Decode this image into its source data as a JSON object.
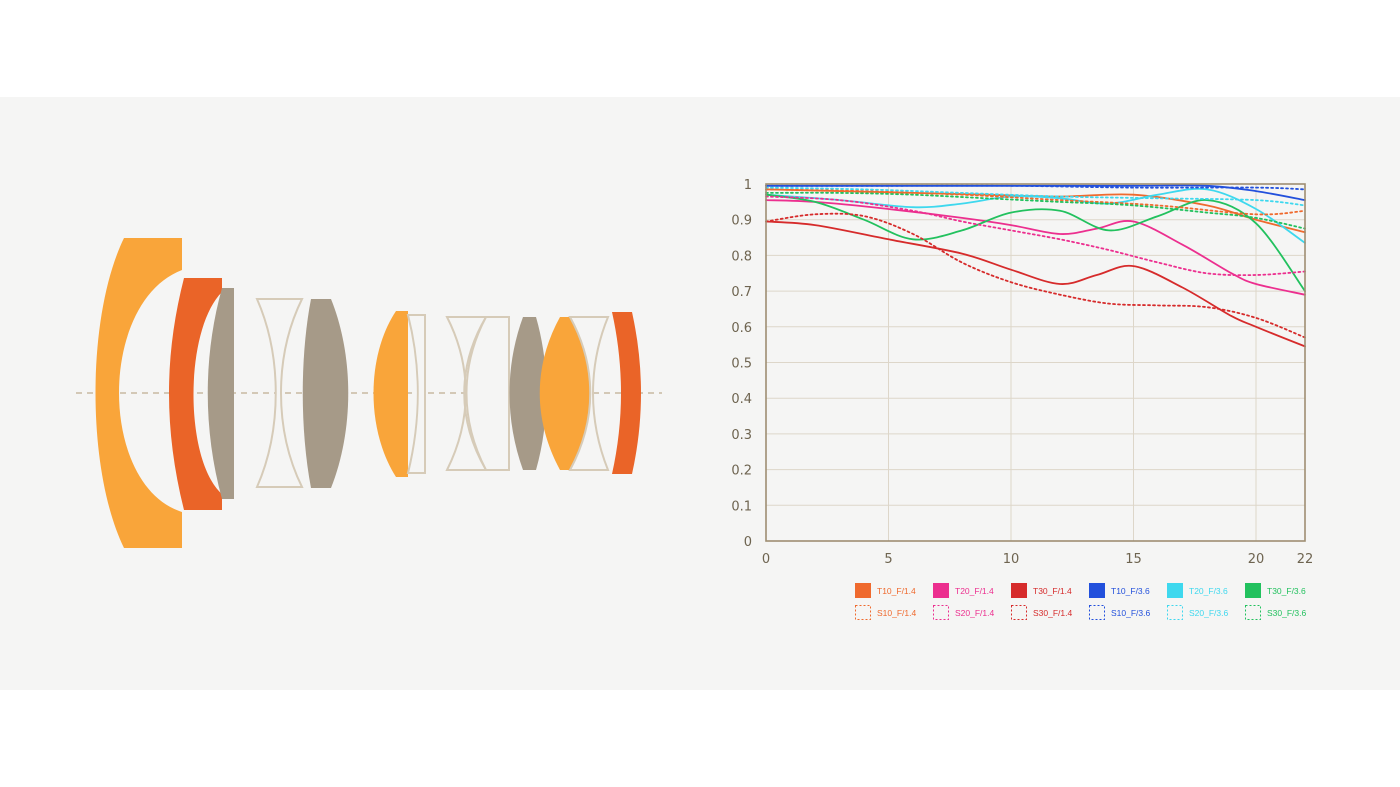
{
  "lens_diagram": {
    "colors": {
      "orange": "#f9a53a",
      "dark_orange": "#ea6428",
      "gray": "#a69a88",
      "outline": "#d6cbb8",
      "axis": "#c8b9a2"
    },
    "elements": [
      {
        "name": "element-1",
        "fill": "orange"
      },
      {
        "name": "element-2",
        "fill": "dark_orange"
      },
      {
        "name": "element-3",
        "fill": "gray"
      },
      {
        "name": "element-4",
        "fill": "outline"
      },
      {
        "name": "element-5",
        "fill": "gray"
      },
      {
        "name": "element-6",
        "fill": "orange"
      },
      {
        "name": "element-7",
        "fill": "outline"
      },
      {
        "name": "element-8",
        "fill": "outline"
      },
      {
        "name": "element-9",
        "fill": "outline"
      },
      {
        "name": "element-10",
        "fill": "gray"
      },
      {
        "name": "element-11",
        "fill": "orange"
      },
      {
        "name": "element-12",
        "fill": "outline"
      },
      {
        "name": "element-13",
        "fill": "dark_orange"
      }
    ]
  },
  "chart_data": {
    "type": "line",
    "title": "",
    "xlabel": "",
    "ylabel": "",
    "xlim": [
      0,
      22
    ],
    "ylim": [
      0,
      1
    ],
    "x_ticks": [
      "0",
      "5",
      "10",
      "15",
      "20",
      "22"
    ],
    "y_ticks": [
      "0",
      "0.1",
      "0.2",
      "0.3",
      "0.4",
      "0.5",
      "0.6",
      "0.7",
      "0.8",
      "0.9",
      "1"
    ],
    "grid": true,
    "legend_position": "bottom-right",
    "frame_color": "#9e8e72",
    "grid_color": "#ddd6c9",
    "series": [
      {
        "name": "T10_F/1.4",
        "color": "#ef6a2e",
        "dash": false,
        "x": [
          0,
          3,
          6,
          9,
          12,
          15,
          18,
          20,
          22
        ],
        "y": [
          0.985,
          0.98,
          0.975,
          0.97,
          0.965,
          0.97,
          0.94,
          0.9,
          0.865
        ]
      },
      {
        "name": "T20_F/1.4",
        "color": "#ec2f8f",
        "dash": false,
        "x": [
          0,
          2,
          5,
          8,
          10,
          12,
          13.5,
          15,
          17,
          19,
          20,
          22
        ],
        "y": [
          0.955,
          0.95,
          0.93,
          0.905,
          0.885,
          0.86,
          0.875,
          0.895,
          0.83,
          0.75,
          0.72,
          0.69
        ]
      },
      {
        "name": "T30_F/1.4",
        "color": "#d62b2b",
        "dash": false,
        "x": [
          0,
          2,
          5,
          8,
          10,
          12,
          13.5,
          15,
          17,
          19,
          20,
          22
        ],
        "y": [
          0.895,
          0.885,
          0.845,
          0.805,
          0.76,
          0.72,
          0.745,
          0.77,
          0.71,
          0.63,
          0.6,
          0.545
        ]
      },
      {
        "name": "T10_F/3.6",
        "color": "#2250dc",
        "dash": false,
        "x": [
          0,
          4,
          8,
          12,
          15,
          18,
          20,
          22
        ],
        "y": [
          0.995,
          0.995,
          0.995,
          0.995,
          0.995,
          0.995,
          0.98,
          0.955
        ]
      },
      {
        "name": "T20_F/3.6",
        "color": "#3ed8ee",
        "dash": false,
        "x": [
          0,
          3,
          6,
          8,
          10,
          12,
          14,
          16,
          18,
          20,
          22
        ],
        "y": [
          0.97,
          0.955,
          0.935,
          0.945,
          0.965,
          0.96,
          0.945,
          0.97,
          0.985,
          0.93,
          0.835
        ]
      },
      {
        "name": "T30_F/3.6",
        "color": "#22c15e",
        "dash": false,
        "x": [
          0,
          2,
          4,
          6,
          8,
          10,
          12,
          14,
          16,
          18,
          20,
          22
        ],
        "y": [
          0.97,
          0.95,
          0.9,
          0.845,
          0.87,
          0.92,
          0.925,
          0.87,
          0.91,
          0.955,
          0.89,
          0.7
        ]
      },
      {
        "name": "S10_F/1.4",
        "color": "#ef6a2e",
        "dash": true,
        "x": [
          0,
          4,
          8,
          12,
          16,
          20,
          22
        ],
        "y": [
          0.985,
          0.98,
          0.97,
          0.955,
          0.94,
          0.915,
          0.925
        ]
      },
      {
        "name": "S20_F/1.4",
        "color": "#ec2f8f",
        "dash": true,
        "x": [
          0,
          3,
          6,
          8,
          10,
          12,
          14,
          16,
          18,
          20,
          22
        ],
        "y": [
          0.965,
          0.955,
          0.925,
          0.895,
          0.87,
          0.845,
          0.815,
          0.78,
          0.75,
          0.745,
          0.755
        ]
      },
      {
        "name": "S30_F/1.4",
        "color": "#d62b2b",
        "dash": true,
        "x": [
          0,
          2,
          4,
          6,
          8,
          10,
          12,
          14,
          16,
          18,
          20,
          22
        ],
        "y": [
          0.895,
          0.915,
          0.91,
          0.86,
          0.78,
          0.725,
          0.69,
          0.665,
          0.66,
          0.655,
          0.625,
          0.57
        ]
      },
      {
        "name": "S10_F/3.6",
        "color": "#2250dc",
        "dash": true,
        "x": [
          0,
          5,
          10,
          15,
          20,
          22
        ],
        "y": [
          0.995,
          0.995,
          0.995,
          0.99,
          0.99,
          0.985
        ]
      },
      {
        "name": "S20_F/3.6",
        "color": "#3ed8ee",
        "dash": true,
        "x": [
          0,
          4,
          8,
          12,
          16,
          20,
          22
        ],
        "y": [
          0.99,
          0.985,
          0.975,
          0.965,
          0.96,
          0.955,
          0.94
        ]
      },
      {
        "name": "S30_F/3.6",
        "color": "#22c15e",
        "dash": true,
        "x": [
          0,
          3,
          6,
          9,
          12,
          15,
          18,
          20,
          22
        ],
        "y": [
          0.975,
          0.975,
          0.97,
          0.96,
          0.95,
          0.94,
          0.92,
          0.905,
          0.875
        ]
      }
    ]
  }
}
